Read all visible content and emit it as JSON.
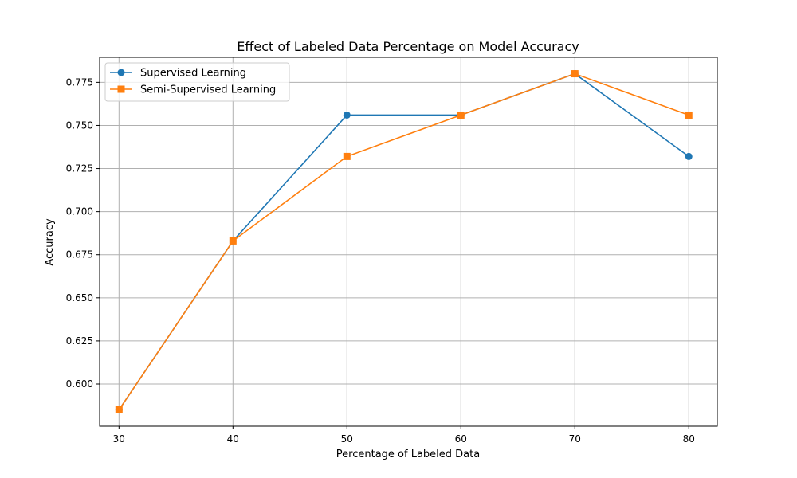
{
  "chart_data": {
    "type": "line",
    "title": "Effect of Labeled Data Percentage on Model Accuracy",
    "xlabel": "Percentage of Labeled Data",
    "ylabel": "Accuracy",
    "x": [
      30,
      40,
      50,
      60,
      70,
      80
    ],
    "xticks": [
      "30",
      "40",
      "50",
      "60",
      "70",
      "80"
    ],
    "xlim": [
      28.3,
      82.5
    ],
    "ylim": [
      0.5755,
      0.7895
    ],
    "yticks": [
      "0.600",
      "0.625",
      "0.650",
      "0.675",
      "0.700",
      "0.725",
      "0.750",
      "0.775"
    ],
    "grid": true,
    "legend_position": "top-left",
    "series": [
      {
        "name": "Supervised Learning",
        "values": [
          0.585,
          0.683,
          0.756,
          0.756,
          0.78,
          0.732
        ],
        "color": "#1f77b4",
        "marker": "circle"
      },
      {
        "name": "Semi-Supervised Learning",
        "values": [
          0.585,
          0.683,
          0.732,
          0.756,
          0.78,
          0.756
        ],
        "color": "#ff7f0e",
        "marker": "square"
      }
    ]
  }
}
